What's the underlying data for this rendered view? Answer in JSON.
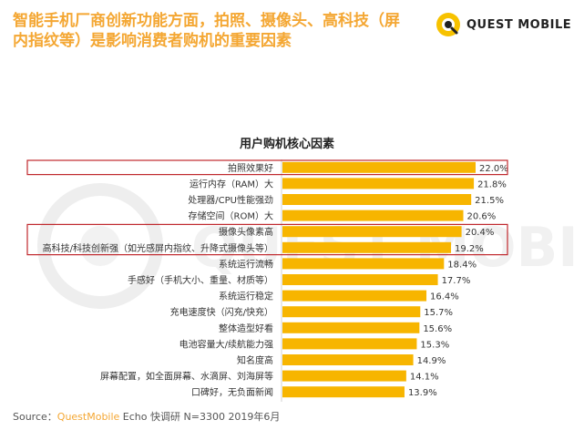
{
  "headline": "智能手机厂商创新功能方面，拍照、摄像头、高科技（屏内指纹等）是影响消费者购机的重要因素",
  "logo": {
    "text": "QUEST MOBILE",
    "icon": "quest-mobile-logo-icon"
  },
  "watermark_text": "QUEST MOBILE",
  "colors": {
    "accent": "#f4a733",
    "bar": "#f7b500",
    "highlight_box": "#c0282d",
    "text": "#333333"
  },
  "source": {
    "prefix": "Source：",
    "brand": "QuestMobile",
    "rest": " Echo 快调研 N=3300 2019年6月"
  },
  "chart_data": {
    "type": "bar",
    "orientation": "horizontal",
    "title": "用户购机核心因素",
    "xlabel": "",
    "ylabel": "",
    "xlim": [
      0,
      22
    ],
    "grid": false,
    "categories": [
      "拍照效果好",
      "运行内存（RAM）大",
      "处理器/CPU性能强劲",
      "存储空间（ROM）大",
      "摄像头像素高",
      "高科技/科技创新强（如光感屏内指纹、升降式摄像头等）",
      "系统运行流畅",
      "手感好（手机大小、重量、材质等）",
      "系统运行稳定",
      "充电速度快（闪充/快充）",
      "整体造型好看",
      "电池容量大/续航能力强",
      "知名度高",
      "屏幕配置，如全面屏幕、水滴屏、刘海屏等",
      "口碑好，无负面新闻"
    ],
    "values": [
      22.0,
      21.8,
      21.5,
      20.6,
      20.4,
      19.2,
      18.4,
      17.7,
      16.4,
      15.7,
      15.6,
      15.3,
      14.9,
      14.1,
      13.9
    ],
    "value_labels": [
      "22.0%",
      "21.8%",
      "21.5%",
      "20.6%",
      "20.4%",
      "19.2%",
      "18.4%",
      "17.7%",
      "16.4%",
      "15.7%",
      "15.6%",
      "15.3%",
      "14.9%",
      "14.1%",
      "13.9%"
    ],
    "highlight_groups": [
      [
        0,
        0
      ],
      [
        4,
        5
      ]
    ]
  }
}
